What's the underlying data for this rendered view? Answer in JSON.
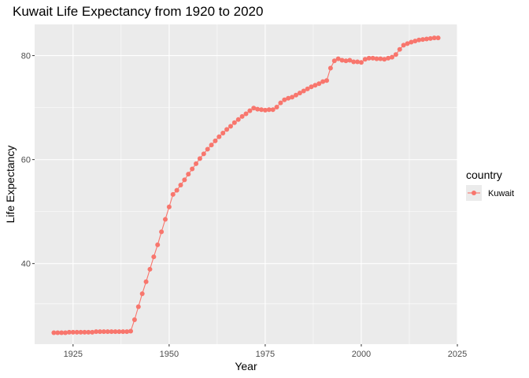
{
  "chart_data": {
    "type": "line",
    "title": "Kuwait Life Expectancy from 1920 to 2020",
    "xlabel": "Year",
    "ylabel": "Life Expectancy",
    "xlim": [
      1915,
      2025
    ],
    "ylim": [
      24.5,
      86
    ],
    "x_ticks": [
      1925,
      1950,
      1975,
      2000,
      2025
    ],
    "y_ticks": [
      40,
      60,
      80
    ],
    "grid": true,
    "legend_position": "right",
    "legend_title": "country",
    "series": [
      {
        "name": "Kuwait",
        "color": "#F8766D",
        "x": [
          1920,
          1921,
          1922,
          1923,
          1924,
          1925,
          1926,
          1927,
          1928,
          1929,
          1930,
          1931,
          1932,
          1933,
          1934,
          1935,
          1936,
          1937,
          1938,
          1939,
          1940,
          1941,
          1942,
          1943,
          1944,
          1945,
          1946,
          1947,
          1948,
          1949,
          1950,
          1951,
          1952,
          1953,
          1954,
          1955,
          1956,
          1957,
          1958,
          1959,
          1960,
          1961,
          1962,
          1963,
          1964,
          1965,
          1966,
          1967,
          1968,
          1969,
          1970,
          1971,
          1972,
          1973,
          1974,
          1975,
          1976,
          1977,
          1978,
          1979,
          1980,
          1981,
          1982,
          1983,
          1984,
          1985,
          1986,
          1987,
          1988,
          1989,
          1990,
          1991,
          1992,
          1993,
          1994,
          1995,
          1996,
          1997,
          1998,
          1999,
          2000,
          2001,
          2002,
          2003,
          2004,
          2005,
          2006,
          2007,
          2008,
          2009,
          2010,
          2011,
          2012,
          2013,
          2014,
          2015,
          2016,
          2017,
          2018,
          2019,
          2020
        ],
        "y": [
          26.7,
          26.7,
          26.7,
          26.7,
          26.8,
          26.8,
          26.8,
          26.8,
          26.8,
          26.8,
          26.8,
          26.9,
          26.9,
          26.9,
          26.9,
          26.9,
          26.9,
          26.9,
          26.9,
          26.9,
          27.0,
          29.2,
          31.7,
          34.2,
          36.5,
          38.9,
          41.3,
          43.6,
          46.1,
          48.5,
          50.9,
          53.3,
          54.1,
          55.1,
          56.1,
          57.2,
          58.2,
          59.2,
          60.2,
          61.1,
          62.0,
          62.8,
          63.6,
          64.4,
          65.1,
          65.8,
          66.4,
          67.1,
          67.7,
          68.3,
          68.8,
          69.4,
          69.9,
          69.7,
          69.6,
          69.5,
          69.6,
          69.6,
          70.1,
          70.9,
          71.5,
          71.8,
          72.0,
          72.4,
          72.8,
          73.2,
          73.6,
          74.0,
          74.3,
          74.6,
          75.0,
          75.2,
          77.6,
          79.0,
          79.4,
          79.1,
          79.0,
          79.1,
          78.8,
          78.8,
          78.7,
          79.3,
          79.5,
          79.5,
          79.4,
          79.4,
          79.3,
          79.5,
          79.7,
          80.2,
          81.2,
          82.0,
          82.3,
          82.6,
          82.8,
          83.0,
          83.1,
          83.2,
          83.3,
          83.4,
          83.4
        ]
      }
    ]
  }
}
